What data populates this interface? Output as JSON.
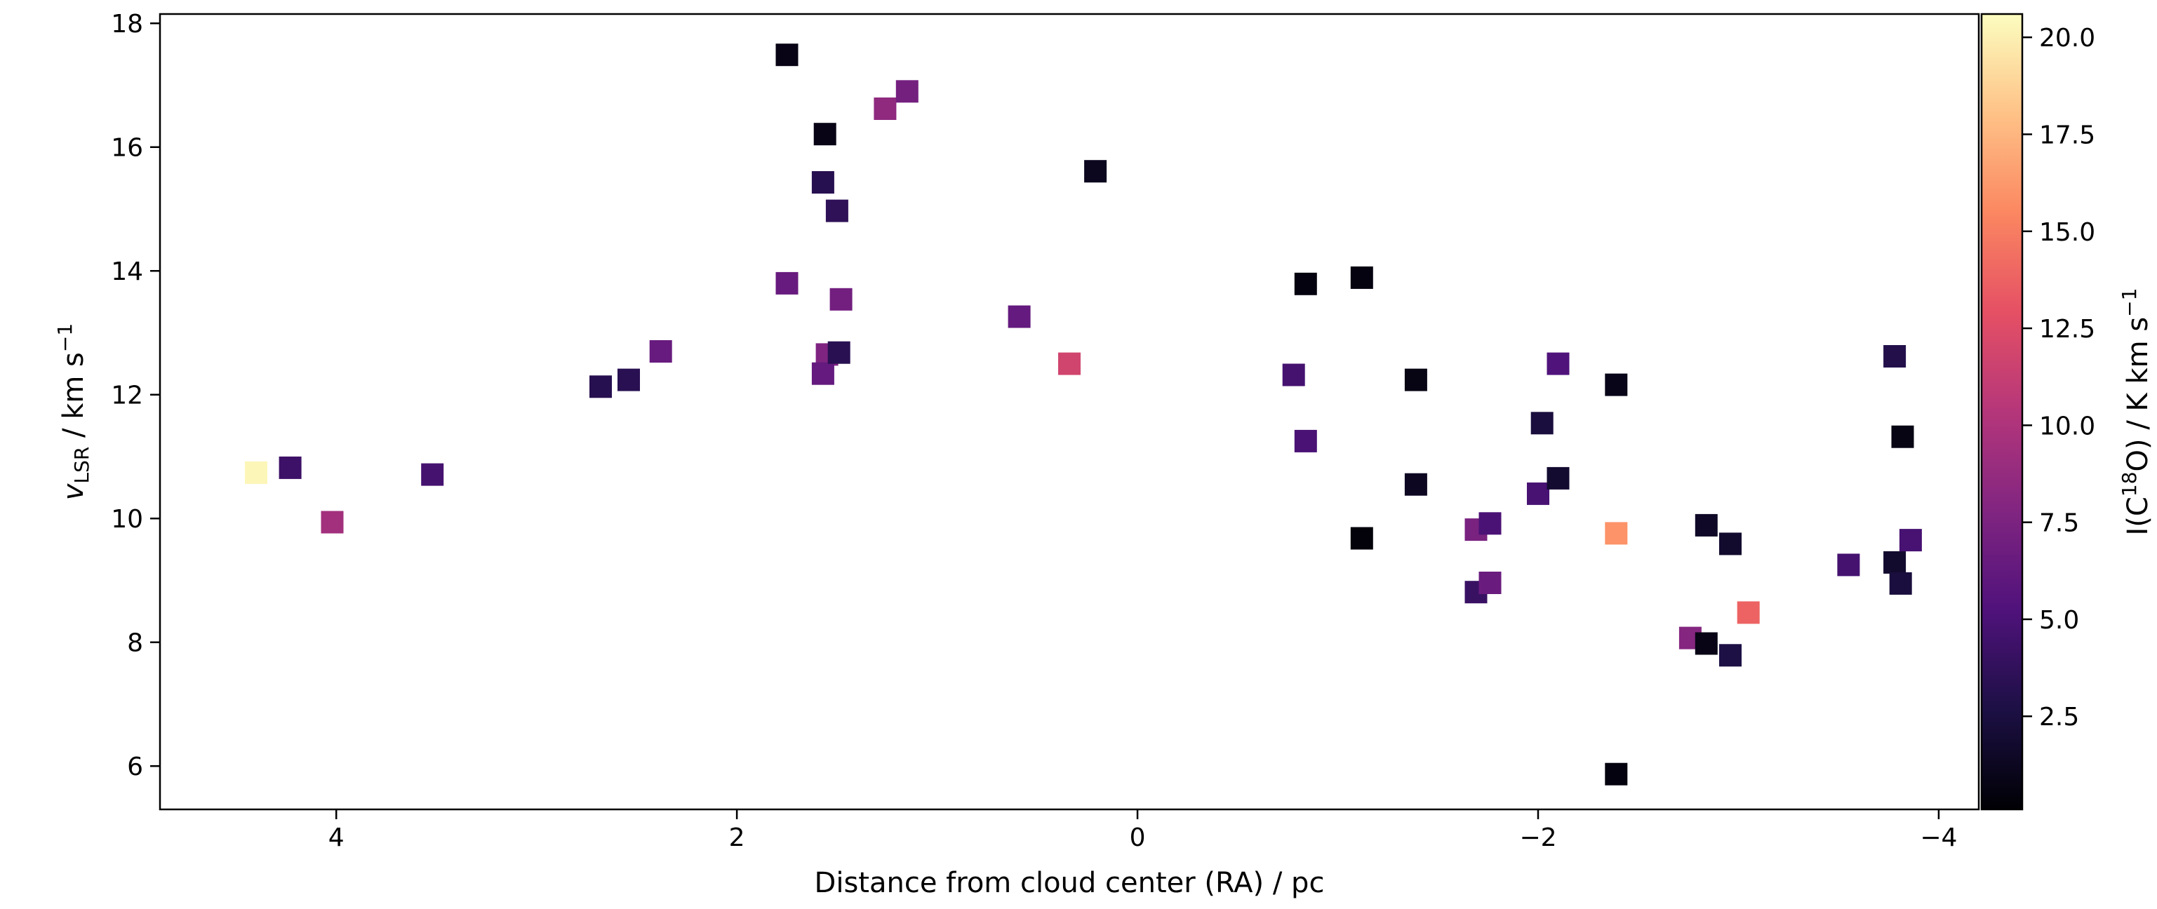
{
  "chart_data": {
    "type": "scatter",
    "title": "",
    "xlabel": "Distance from cloud center (RA) / pc",
    "ylabel_main": "v",
    "ylabel_sub": "LSR",
    "ylabel_unit": " / km s",
    "ylabel_exp": "−1",
    "x_inverted": true,
    "xlim": [
      4.88,
      -4.2
    ],
    "ylim": [
      5.3,
      18.15
    ],
    "xticks": [
      4,
      2,
      0,
      -2,
      -4
    ],
    "xtick_labels": [
      "4",
      "2",
      "0",
      "−2",
      "−4"
    ],
    "yticks": [
      6,
      8,
      10,
      12,
      14,
      16,
      18
    ],
    "ytick_labels": [
      "6",
      "8",
      "10",
      "12",
      "14",
      "16",
      "18"
    ],
    "colorbar": {
      "colormap": "magma",
      "label_prefix": "I(C",
      "label_sup": "18",
      "label_mid": "O) / K km s",
      "label_exp": "−1",
      "range": [
        0.1,
        20.6
      ],
      "ticks": [
        2.5,
        5.0,
        7.5,
        10.0,
        12.5,
        15.0,
        17.5,
        20.0
      ],
      "tick_labels": [
        "2.5",
        "5.0",
        "7.5",
        "10.0",
        "12.5",
        "15.0",
        "17.5",
        "20.0"
      ]
    },
    "points": [
      {
        "x": 4.4,
        "y": 10.74,
        "c": 20.3
      },
      {
        "x": 4.23,
        "y": 10.82,
        "c": 4.3
      },
      {
        "x": 4.02,
        "y": 9.94,
        "c": 9.4
      },
      {
        "x": 3.52,
        "y": 10.71,
        "c": 4.7
      },
      {
        "x": 2.68,
        "y": 12.13,
        "c": 3.2
      },
      {
        "x": 2.54,
        "y": 12.24,
        "c": 3.3
      },
      {
        "x": 2.38,
        "y": 12.7,
        "c": 6.5
      },
      {
        "x": 1.75,
        "y": 17.49,
        "c": 0.8
      },
      {
        "x": 1.75,
        "y": 13.8,
        "c": 6.5
      },
      {
        "x": 1.56,
        "y": 16.21,
        "c": 0.8
      },
      {
        "x": 1.57,
        "y": 15.43,
        "c": 3.2
      },
      {
        "x": 1.5,
        "y": 14.97,
        "c": 3.6
      },
      {
        "x": 1.48,
        "y": 13.54,
        "c": 7.0
      },
      {
        "x": 1.55,
        "y": 12.65,
        "c": 7.7
      },
      {
        "x": 1.57,
        "y": 12.34,
        "c": 6.3
      },
      {
        "x": 1.49,
        "y": 12.68,
        "c": 3.3
      },
      {
        "x": 1.26,
        "y": 16.62,
        "c": 8.5
      },
      {
        "x": 1.15,
        "y": 16.9,
        "c": 7.1
      },
      {
        "x": 0.59,
        "y": 13.26,
        "c": 6.3
      },
      {
        "x": 0.34,
        "y": 12.5,
        "c": 11.8
      },
      {
        "x": 0.21,
        "y": 15.61,
        "c": 1.2
      },
      {
        "x": -0.78,
        "y": 12.32,
        "c": 4.7
      },
      {
        "x": -0.84,
        "y": 13.79,
        "c": 0.5
      },
      {
        "x": -0.84,
        "y": 11.25,
        "c": 4.9
      },
      {
        "x": -1.12,
        "y": 13.89,
        "c": 0.6
      },
      {
        "x": -1.12,
        "y": 9.68,
        "c": 0.4
      },
      {
        "x": -1.39,
        "y": 12.24,
        "c": 0.7
      },
      {
        "x": -1.39,
        "y": 10.55,
        "c": 1.3
      },
      {
        "x": -1.69,
        "y": 9.82,
        "c": 7.4
      },
      {
        "x": -1.76,
        "y": 9.92,
        "c": 5.0
      },
      {
        "x": -1.69,
        "y": 8.81,
        "c": 4.1
      },
      {
        "x": -1.76,
        "y": 8.96,
        "c": 6.6
      },
      {
        "x": -2.0,
        "y": 10.4,
        "c": 4.8
      },
      {
        "x": -2.02,
        "y": 11.54,
        "c": 2.4
      },
      {
        "x": -2.1,
        "y": 12.5,
        "c": 5.3
      },
      {
        "x": -2.1,
        "y": 10.65,
        "c": 1.9
      },
      {
        "x": -2.39,
        "y": 12.16,
        "c": 0.9
      },
      {
        "x": -2.39,
        "y": 9.76,
        "c": 16.0
      },
      {
        "x": -2.39,
        "y": 5.87,
        "c": 0.5
      },
      {
        "x": -2.76,
        "y": 8.07,
        "c": 8.0
      },
      {
        "x": -2.84,
        "y": 9.89,
        "c": 1.5
      },
      {
        "x": -2.84,
        "y": 7.98,
        "c": 0.8
      },
      {
        "x": -2.96,
        "y": 9.59,
        "c": 1.8
      },
      {
        "x": -2.96,
        "y": 7.79,
        "c": 2.7
      },
      {
        "x": -3.05,
        "y": 8.48,
        "c": 13.8
      },
      {
        "x": -3.55,
        "y": 9.25,
        "c": 4.7
      },
      {
        "x": -3.78,
        "y": 12.62,
        "c": 3.0
      },
      {
        "x": -3.78,
        "y": 9.29,
        "c": 1.8
      },
      {
        "x": -3.82,
        "y": 11.32,
        "c": 0.7
      },
      {
        "x": -3.81,
        "y": 8.95,
        "c": 2.4
      },
      {
        "x": -3.86,
        "y": 9.65,
        "c": 4.8
      }
    ]
  }
}
